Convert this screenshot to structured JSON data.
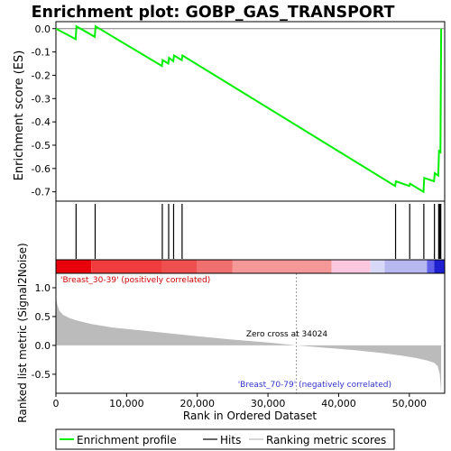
{
  "chart_data": {
    "type": "line",
    "title": "Enrichment plot: GOBP_GAS_TRANSPORT",
    "es_panel": {
      "ylabel": "Enrichment score (ES)",
      "ylim": [
        -0.74,
        0.03
      ],
      "yticks": [
        0.0,
        -0.1,
        -0.2,
        -0.3,
        -0.4,
        -0.5,
        -0.6,
        -0.7
      ],
      "ytick_labels": [
        "0.0",
        "-0.1",
        "-0.2",
        "-0.3",
        "-0.4",
        "-0.5",
        "-0.6",
        "-0.7"
      ],
      "series": [
        {
          "name": "Enrichment profile",
          "color": "#00ee00",
          "x": [
            0,
            2800,
            2900,
            5500,
            5600,
            15000,
            15100,
            15900,
            16000,
            16600,
            16700,
            17800,
            17900,
            48000,
            48100,
            50000,
            50100,
            52000,
            52100,
            53500,
            53600,
            54100,
            54200,
            54400,
            54500
          ],
          "y": [
            0.0,
            -0.045,
            0.01,
            -0.035,
            0.01,
            -0.16,
            -0.135,
            -0.15,
            -0.125,
            -0.14,
            -0.115,
            -0.135,
            -0.115,
            -0.675,
            -0.655,
            -0.675,
            -0.665,
            -0.7,
            -0.64,
            -0.655,
            -0.62,
            -0.63,
            -0.525,
            -0.53,
            0.0
          ]
        }
      ]
    },
    "hits": {
      "name": "Hits",
      "positions": [
        2850,
        5550,
        15050,
        15950,
        16650,
        17850,
        48050,
        50050,
        52050,
        53550,
        54150,
        54250,
        54350,
        54450
      ]
    },
    "gradient_bar": {
      "colors": [
        "#e8000b",
        "#f03c3c",
        "#ee5050",
        "#f07070",
        "#f59898",
        "#fbc8e0",
        "#d8d8f8",
        "#b8b8f0",
        "#6060e8",
        "#2020d0"
      ],
      "stops": [
        0,
        5000,
        15000,
        20000,
        25000,
        39000,
        44500,
        46500,
        52500,
        53500,
        55000
      ]
    },
    "metric_panel": {
      "ylabel": "Ranked list metric (Signal2Noise)",
      "ylim": [
        -0.83,
        1.25
      ],
      "yticks": [
        1.0,
        0.5,
        0.0,
        -0.5
      ],
      "ytick_labels": [
        "1.0",
        "0.5",
        "0.0",
        "-0.5"
      ],
      "zero_cross_label": "Zero cross at 34024",
      "zero_cross_x": 34024,
      "pos_label": "'Breast_30-39' (positively correlated)",
      "neg_label": "'Breast_70-79' (negatively correlated)",
      "curve_x": [
        0,
        200,
        500,
        1000,
        2000,
        3000,
        5000,
        8000,
        12000,
        16000,
        20000,
        25000,
        30000,
        34024,
        38000,
        42000,
        46000,
        49000,
        51000,
        52500,
        53500,
        54000,
        54300,
        54500
      ],
      "curve_y": [
        0.82,
        0.7,
        0.6,
        0.53,
        0.47,
        0.43,
        0.37,
        0.31,
        0.26,
        0.21,
        0.16,
        0.1,
        0.05,
        0.0,
        -0.04,
        -0.08,
        -0.13,
        -0.18,
        -0.22,
        -0.26,
        -0.3,
        -0.36,
        -0.5,
        -0.82
      ]
    },
    "xaxis": {
      "label": "Rank in Ordered Dataset",
      "xlim": [
        0,
        55000
      ],
      "ticks": [
        0,
        10000,
        20000,
        30000,
        40000,
        50000
      ],
      "tick_labels": [
        "0",
        "10,000",
        "20,000",
        "30,000",
        "40,000",
        "50,000"
      ]
    },
    "legend": {
      "placement": "bottom",
      "items": [
        {
          "label": "Enrichment profile",
          "color": "#00ee00"
        },
        {
          "label": "Hits",
          "color": "#000000"
        },
        {
          "label": "Ranking metric scores",
          "color": "#bbbbbb"
        }
      ]
    }
  }
}
